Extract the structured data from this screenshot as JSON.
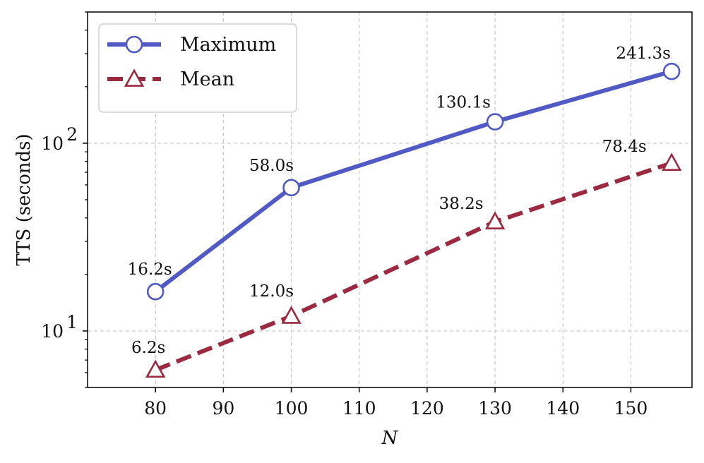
{
  "chart_data": {
    "type": "line",
    "x": [
      80,
      100,
      130,
      156
    ],
    "series": [
      {
        "name": "Maximum",
        "values": [
          16.2,
          58.0,
          130.1,
          241.3
        ],
        "labels": [
          "16.2s",
          "58.0s",
          "130.1s",
          "241.3s"
        ],
        "color": "#5059c4",
        "marker": "circle",
        "line_style": "solid"
      },
      {
        "name": "Mean",
        "values": [
          6.2,
          12.0,
          38.2,
          78.4
        ],
        "labels": [
          "6.2s",
          "12.0s",
          "38.2s",
          "78.4s"
        ],
        "color": "#9b2a40",
        "marker": "triangle",
        "line_style": "dashed"
      }
    ],
    "xlabel": "N",
    "ylabel": "TTS (seconds)",
    "xlim": [
      70,
      159
    ],
    "ylim": [
      5,
      500
    ],
    "yscale": "log",
    "xticks": [
      80,
      90,
      100,
      110,
      120,
      130,
      140,
      150
    ],
    "xtick_labels": [
      "80",
      "90",
      "100",
      "110",
      "120",
      "130",
      "140",
      "150"
    ],
    "yticks_major": [
      10,
      100
    ],
    "ytick_labels": [
      {
        "base": "10",
        "exp": "1"
      },
      {
        "base": "10",
        "exp": "2"
      }
    ],
    "grid": true,
    "legend": "top-left"
  }
}
